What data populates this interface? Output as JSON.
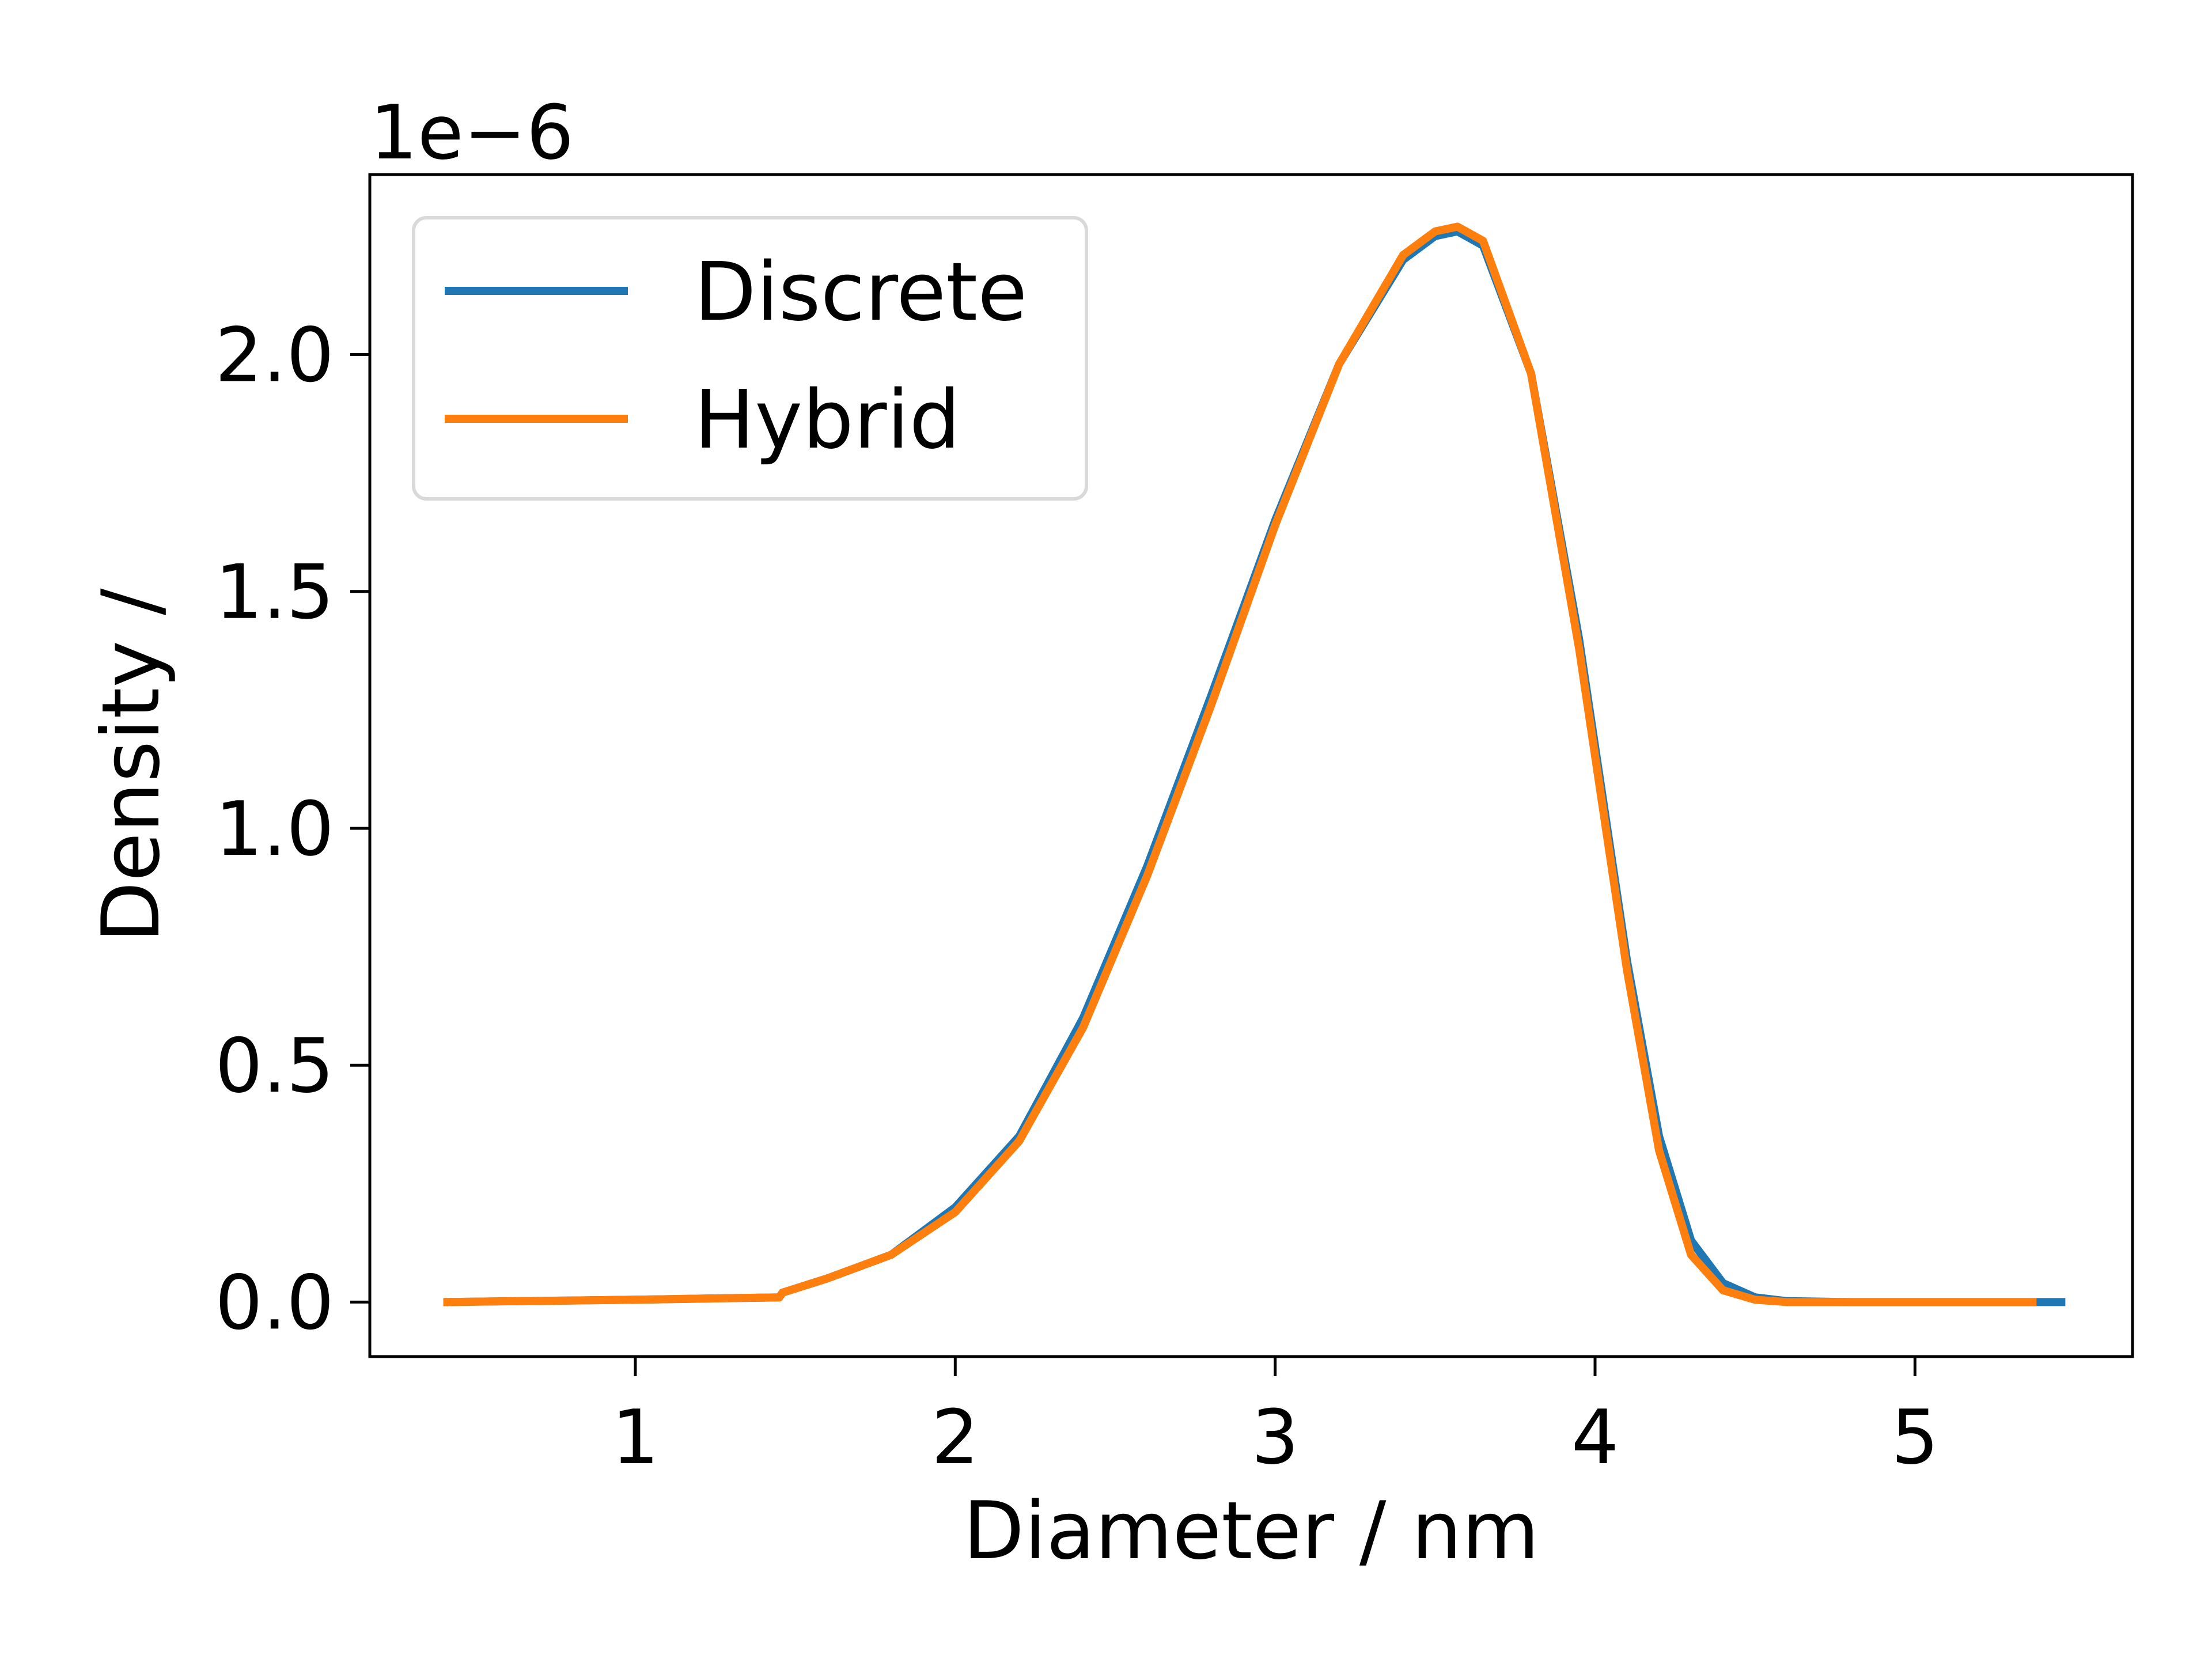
{
  "chart_data": {
    "type": "line",
    "xlabel": "Diameter / nm",
    "ylabel": "Density /",
    "y_offset_label": "1e−6",
    "xlim": [
      0.17,
      5.68
    ],
    "ylim": [
      -0.115,
      2.38
    ],
    "xticks": [
      1,
      2,
      3,
      4,
      5
    ],
    "xtick_labels": [
      "1",
      "2",
      "3",
      "4",
      "5"
    ],
    "yticks": [
      0.0,
      0.5,
      1.0,
      1.5,
      2.0
    ],
    "ytick_labels": [
      "0.0",
      "0.5",
      "1.0",
      "1.5",
      "2.0"
    ],
    "y_scale_factor": 1e-06,
    "grid": false,
    "legend": {
      "placement": "top-left"
    },
    "series": [
      {
        "name": "Discrete",
        "color": "#1f77b4",
        "x": [
          0.4,
          1.0,
          1.45,
          1.46,
          1.6,
          1.8,
          2.0,
          2.2,
          2.4,
          2.6,
          2.8,
          3.0,
          3.2,
          3.4,
          3.5,
          3.57,
          3.65,
          3.8,
          3.95,
          4.1,
          4.2,
          4.3,
          4.4,
          4.5,
          4.6,
          4.8,
          5.0,
          5.2,
          5.47
        ],
        "y": [
          0.0,
          0.005,
          0.01,
          0.02,
          0.05,
          0.1,
          0.2,
          0.35,
          0.6,
          0.92,
          1.28,
          1.65,
          1.98,
          2.2,
          2.25,
          2.26,
          2.23,
          1.96,
          1.4,
          0.72,
          0.35,
          0.13,
          0.04,
          0.01,
          0.002,
          0.0,
          0.0,
          0.0,
          0.0
        ]
      },
      {
        "name": "Hybrid",
        "color": "#ff7f0e",
        "x": [
          0.4,
          1.0,
          1.45,
          1.46,
          1.6,
          1.8,
          2.0,
          2.2,
          2.4,
          2.6,
          2.8,
          3.0,
          3.2,
          3.4,
          3.5,
          3.57,
          3.65,
          3.8,
          3.95,
          4.1,
          4.2,
          4.3,
          4.4,
          4.5,
          4.6,
          4.8,
          5.0,
          5.2,
          5.38
        ],
        "y": [
          0.0,
          0.005,
          0.01,
          0.02,
          0.05,
          0.1,
          0.19,
          0.34,
          0.58,
          0.9,
          1.26,
          1.64,
          1.98,
          2.21,
          2.26,
          2.27,
          2.24,
          1.96,
          1.38,
          0.7,
          0.32,
          0.1,
          0.025,
          0.005,
          0.0,
          0.0,
          0.0,
          0.0,
          0.0
        ]
      }
    ]
  }
}
